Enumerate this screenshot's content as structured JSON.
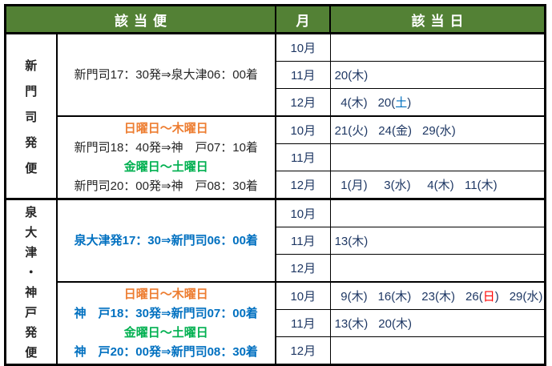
{
  "colors": {
    "header_bg": "#538135",
    "header_text": "#FFFFFF",
    "navy": "#1F3864",
    "black": "#262626",
    "orange": "#ED7D31",
    "green": "#00B050",
    "blue": "#0070C0",
    "red": "#FF0000",
    "border": "#000000"
  },
  "header": {
    "flights": "該当便",
    "month": "月",
    "dates": "該当日"
  },
  "sections": [
    {
      "route_label": "新門司発便",
      "route_chars": [
        "新",
        "門",
        "司",
        "発",
        "便"
      ],
      "subsections": [
        {
          "desc_lines": [
            {
              "role": "schedule",
              "text": "新門司17：30発⇒泉大津06：00着",
              "color": "black",
              "bold": false
            }
          ],
          "rows": [
            {
              "month": "10月",
              "dates": []
            },
            {
              "month": "11月",
              "dates": [
                {
                  "day": "20",
                  "wd": "木",
                  "wd_color": "navy"
                }
              ]
            },
            {
              "month": "12月",
              "dates": [
                {
                  "day": "4",
                  "wd": "木",
                  "wd_color": "navy"
                },
                {
                  "day": "20",
                  "wd": "土",
                  "wd_color": "blue"
                }
              ]
            }
          ]
        },
        {
          "desc_lines": [
            {
              "role": "day-range",
              "text": "日曜日～木曜日",
              "color": "orange",
              "bold": true
            },
            {
              "role": "schedule",
              "text": "新門司18：40発⇒神　戸07：10着",
              "color": "black",
              "bold": false
            },
            {
              "role": "day-range",
              "text": "金曜日～土曜日",
              "color": "green",
              "bold": true
            },
            {
              "role": "schedule",
              "text": "新門司20：00発⇒神　戸08：30着",
              "color": "black",
              "bold": false
            }
          ],
          "rows": [
            {
              "month": "10月",
              "dates": [
                {
                  "day": "21",
                  "wd": "火",
                  "wd_color": "navy"
                },
                {
                  "day": "24",
                  "wd": "金",
                  "wd_color": "navy"
                },
                {
                  "day": "29",
                  "wd": "水",
                  "wd_color": "navy"
                }
              ]
            },
            {
              "month": "11月",
              "dates": []
            },
            {
              "month": "12月",
              "dates": [
                {
                  "day": "1",
                  "wd": "月",
                  "wd_color": "navy"
                },
                {
                  "day": "3",
                  "wd": "水",
                  "wd_color": "navy"
                },
                {
                  "day": "4",
                  "wd": "木",
                  "wd_color": "navy"
                },
                {
                  "day": "11",
                  "wd": "木",
                  "wd_color": "navy"
                }
              ]
            }
          ]
        }
      ]
    },
    {
      "route_label": "泉大津・神戸発便",
      "route_chars": [
        "泉",
        "大",
        "津",
        "・",
        "神",
        "戸",
        "発",
        "便"
      ],
      "subsections": [
        {
          "desc_lines": [
            {
              "role": "schedule",
              "text": "泉大津発17：30⇒新門司06：00着",
              "color": "blue",
              "bold": true
            }
          ],
          "rows": [
            {
              "month": "10月",
              "dates": []
            },
            {
              "month": "11月",
              "dates": [
                {
                  "day": "13",
                  "wd": "木",
                  "wd_color": "navy"
                }
              ]
            },
            {
              "month": "12月",
              "dates": []
            }
          ]
        },
        {
          "desc_lines": [
            {
              "role": "day-range",
              "text": "日曜日～木曜日",
              "color": "orange",
              "bold": true
            },
            {
              "role": "schedule",
              "text": "神　戸18：30発⇒新門司07：00着",
              "color": "blue",
              "bold": true
            },
            {
              "role": "day-range",
              "text": "金曜日～土曜日",
              "color": "green",
              "bold": true
            },
            {
              "role": "schedule",
              "text": "神　戸20：00発⇒新門司08：30着",
              "color": "blue",
              "bold": true
            }
          ],
          "rows": [
            {
              "month": "10月",
              "dates": [
                {
                  "day": "9",
                  "wd": "木",
                  "wd_color": "navy"
                },
                {
                  "day": "16",
                  "wd": "木",
                  "wd_color": "navy"
                },
                {
                  "day": "23",
                  "wd": "木",
                  "wd_color": "navy"
                },
                {
                  "day": "26",
                  "wd": "日",
                  "wd_color": "red"
                },
                {
                  "day": "29",
                  "wd": "水",
                  "wd_color": "navy"
                }
              ]
            },
            {
              "month": "11月",
              "dates": [
                {
                  "day": "13",
                  "wd": "木",
                  "wd_color": "navy"
                },
                {
                  "day": "20",
                  "wd": "木",
                  "wd_color": "navy"
                }
              ]
            },
            {
              "month": "12月",
              "dates": []
            }
          ]
        }
      ]
    }
  ]
}
